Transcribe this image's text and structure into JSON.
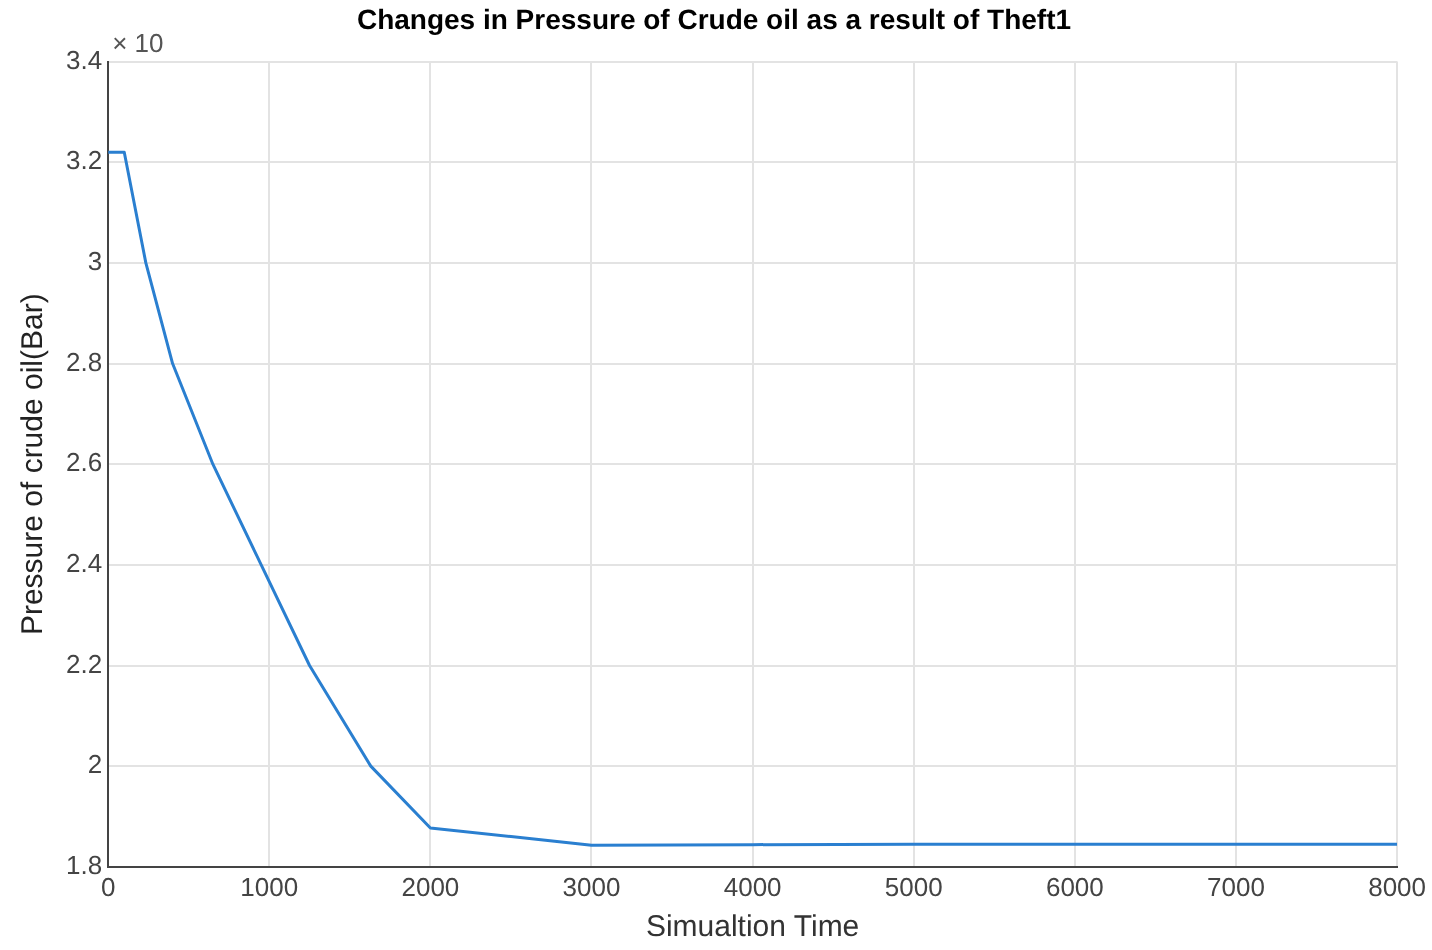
{
  "chart_data": {
    "type": "line",
    "title": "Changes in Pressure of Crude oil as a result of Theft1",
    "xlabel": "Simualtion Time",
    "ylabel": "Pressure of crude oil(Bar)",
    "annotations": [
      "× 10"
    ],
    "series": [
      {
        "color": "#2a7fd0",
        "x": [
          0,
          100,
          234,
          400,
          650,
          950,
          1250,
          1630,
          2000,
          2500,
          3000,
          4000,
          5000,
          6000,
          7000,
          8000
        ],
        "values": [
          3.22,
          3.22,
          3.0,
          2.8,
          2.6,
          2.4,
          2.2,
          2.0,
          1.877,
          1.86,
          1.843,
          1.844,
          1.845,
          1.845,
          1.845,
          1.845
        ]
      }
    ],
    "xlim": [
      0,
      8000
    ],
    "xticks": [
      0,
      1000,
      2000,
      3000,
      4000,
      5000,
      6000,
      7000,
      8000
    ],
    "ylim": [
      1.8,
      3.4
    ],
    "yticks": [
      {
        "value": 1.8,
        "label": "1.8"
      },
      2,
      {
        "value": 2.2,
        "label": "2.2"
      },
      {
        "value": 2.4,
        "label": "2.4"
      },
      {
        "value": 2.6,
        "label": "2.6"
      },
      {
        "value": 2.8,
        "label": "2.8"
      },
      3,
      {
        "value": 3.2,
        "label": "3.2"
      },
      {
        "value": 3.4,
        "label": "3.4"
      }
    ],
    "grid": true,
    "legend": false,
    "marker": "none",
    "line_style": "solid"
  }
}
